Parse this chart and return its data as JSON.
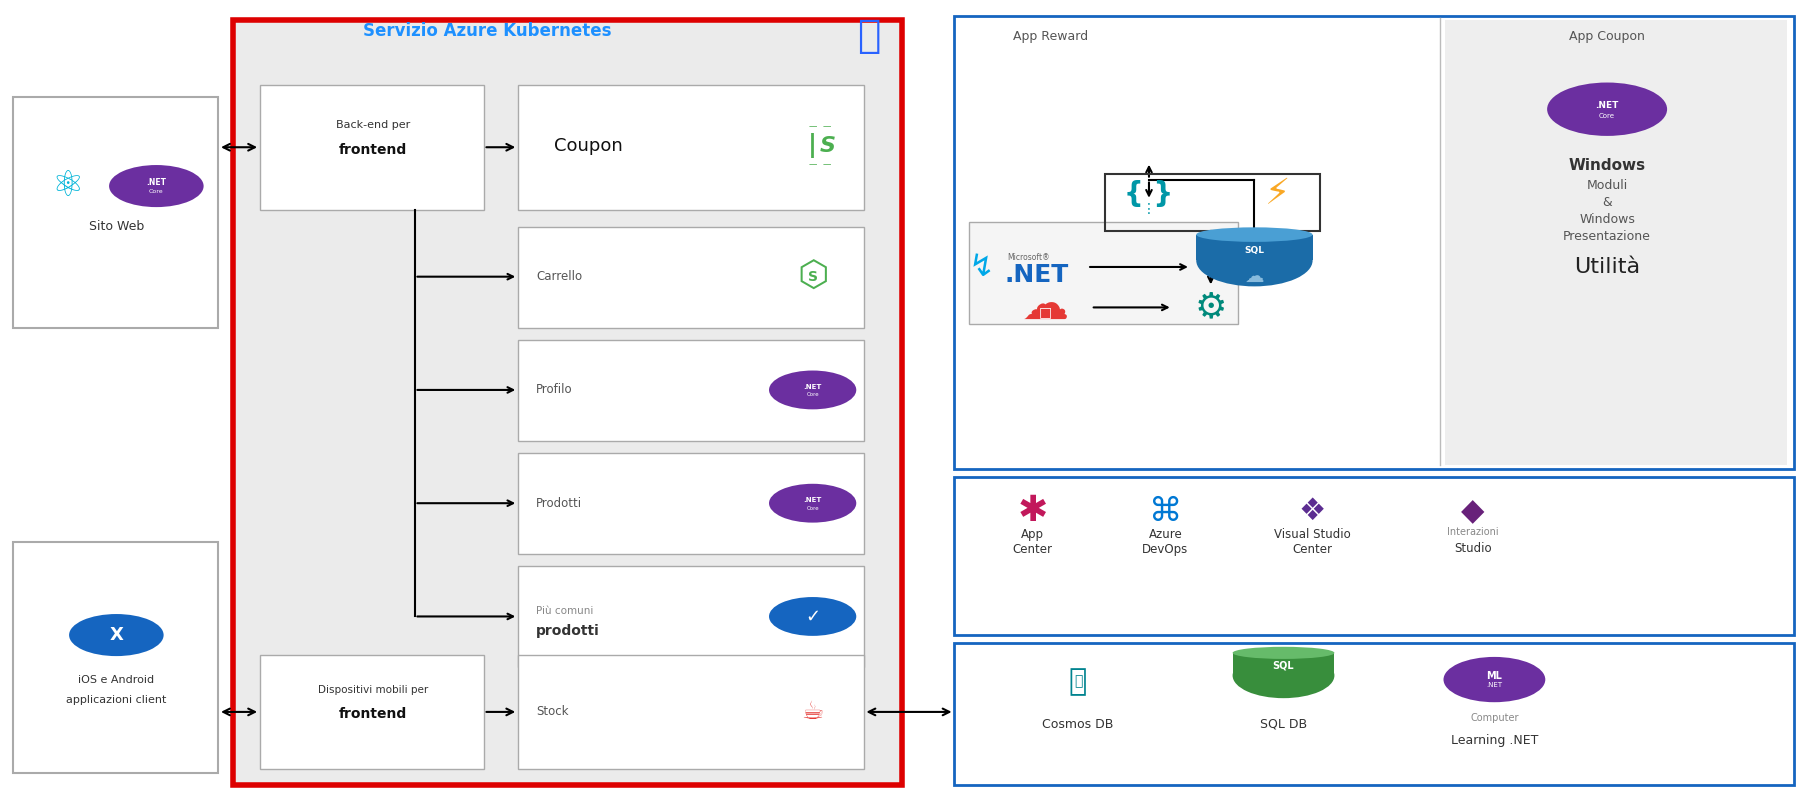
{
  "fig_width": 18.18,
  "fig_height": 8.09,
  "bg_color": "#ffffff",
  "red_color": "#dd0000",
  "blue_color": "#1565c0",
  "light_blue": "#1e90ff",
  "gray_bg": "#ebebeb",
  "dark_gray": "#444444",
  "medium_gray": "#777777",
  "light_gray": "#cccccc",
  "purple": "#6b2fa0",
  "green": "#4caf50",
  "node_green": "#3d8b3d",
  "orange": "#f57c00",
  "teal": "#00838f",
  "pink": "#c2185b",
  "kubernetes_title": "Servizio Azure Kubernetes",
  "sito_web_label": "Sito Web",
  "ios_label1": "iOS e Android",
  "ios_label2": "applicazioni client",
  "backend_top1": "Back-end per",
  "backend_top2": "frontend",
  "backend_bot1": "Dispositivi mobili per",
  "backend_bot2": "frontend",
  "services": [
    "Coupon",
    "Carrello",
    "Profilo",
    "Prodotti"
  ],
  "piu_comuni1": "Più comuni",
  "piu_comuni2": "prodotti",
  "stock_label": "Stock",
  "app_reward_title": "App Reward",
  "app_coupon_title": "App Coupon",
  "win1": "Windows",
  "win2": "Moduli",
  "win3": "&",
  "win4": "Windows",
  "win5": "Presentazione",
  "win6": "Utilità",
  "devtools": [
    "App\nCenter",
    "Azure\nDevOps",
    "Visual Studio\nCenter"
  ],
  "interazioni1": "Interazioni",
  "interazioni2": "Studio",
  "cosmos": "Cosmos DB",
  "sqldb": "SQL DB",
  "ml1": "Computer",
  "ml2": "Learning .NET"
}
